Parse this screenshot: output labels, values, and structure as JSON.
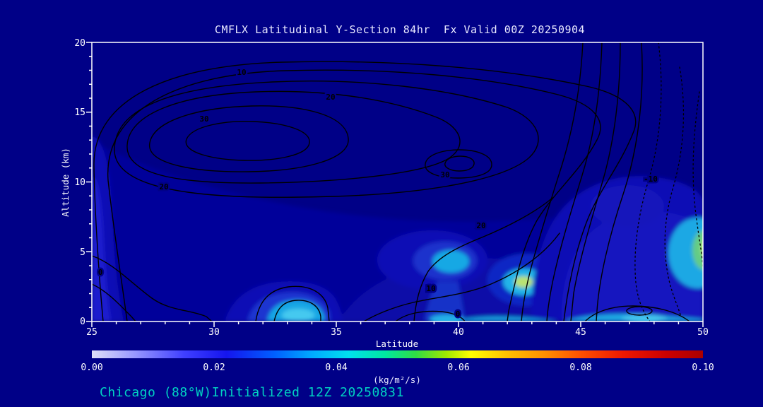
{
  "colors": {
    "background": "#000087",
    "frame": "#ffffff",
    "title_text": "#e8e8ff",
    "axis_text": "#ffffff",
    "footer_text": "#00d2c2",
    "contour_line": "#000000"
  },
  "chart_data": {
    "type": "heatmap",
    "variant": "latitude-height filled-contour cross-section with overlaid line contours",
    "title": "CMFLX Latitudinal Y-Section 84hr  Fx Valid 00Z 20250904",
    "xlabel": "Latitude",
    "ylabel": "Altitude (km)",
    "xlim": [
      25,
      50
    ],
    "ylim": [
      0,
      20
    ],
    "x_ticks": [
      "25",
      "30",
      "35",
      "40",
      "45",
      "50"
    ],
    "y_ticks": [
      "0",
      "5",
      "10",
      "15",
      "20"
    ],
    "grid": false,
    "legend_position": "none",
    "contours": {
      "interval": 5,
      "labeled_levels": [
        0,
        10,
        20,
        30,
        -10
      ],
      "negative_line_style": "dotted",
      "primary_max": {
        "lat": 31,
        "alt_km": 12.5,
        "value": 30
      },
      "secondary_max": {
        "lat": 39.8,
        "alt_km": 11.3,
        "value": 30
      },
      "labels": [
        {
          "text": "10",
          "lat": 31.1,
          "alt_km": 17.7
        },
        {
          "text": "20",
          "lat": 34.8,
          "alt_km": 15.9
        },
        {
          "text": "30",
          "lat": 29.6,
          "alt_km": 14.3
        },
        {
          "text": "20",
          "lat": 28.0,
          "alt_km": 9.5
        },
        {
          "text": "30",
          "lat": 39.5,
          "alt_km": 10.3
        },
        {
          "text": "20",
          "lat": 40.9,
          "alt_km": 6.7
        },
        {
          "text": "10",
          "lat": 38.9,
          "alt_km": 2.2
        },
        {
          "text": "0",
          "lat": 25.3,
          "alt_km": 3.3
        },
        {
          "text": "0",
          "lat": 40.0,
          "alt_km": 0.4
        },
        {
          "text": "-10",
          "lat": 47.9,
          "alt_km": 10.0
        }
      ]
    },
    "shaded_field": {
      "units": "kg/m²/s",
      "features": [
        {
          "lat": 25.5,
          "alt_km_range": [
            0,
            13
          ],
          "value": 0.01,
          "desc": "light-blue band along left edge"
        },
        {
          "lat": 33.8,
          "alt_km_range": [
            0,
            3
          ],
          "value": 0.035,
          "desc": "cyan surface plume"
        },
        {
          "lat": 39.3,
          "alt_km_range": [
            2.5,
            6.5
          ],
          "value": 0.035,
          "desc": "cyan mid-level patch"
        },
        {
          "lat": 40.0,
          "alt_km_range": [
            0,
            1
          ],
          "value": 0.04,
          "desc": "cyan near surface"
        },
        {
          "lat": 42.8,
          "alt_km_range": [
            1.5,
            3.5
          ],
          "value": 0.055,
          "desc": "bright yellow-green spot in cyan patch"
        },
        {
          "lat": 47.0,
          "alt_km_range": [
            0,
            9.5
          ],
          "value": 0.02,
          "desc": "broad light-blue region right side"
        },
        {
          "lat": 49.8,
          "alt_km_range": [
            3.5,
            6.5
          ],
          "value": 0.05,
          "desc": "bright cyan-green maximum at right edge"
        },
        {
          "lat": 47.5,
          "alt_km_range": [
            0,
            0.8
          ],
          "value": 0.04,
          "desc": "cyan strip along surface at right"
        }
      ]
    },
    "colorbar": {
      "label": "(kg/m²/s)",
      "range": [
        0.0,
        0.1
      ],
      "ticks": [
        "0.00",
        "0.02",
        "0.04",
        "0.06",
        "0.08",
        "0.10"
      ],
      "stops": [
        {
          "pos": 0.0,
          "color": "#e0e0f8"
        },
        {
          "pos": 0.07,
          "color": "#9898ff"
        },
        {
          "pos": 0.15,
          "color": "#4040ff"
        },
        {
          "pos": 0.22,
          "color": "#1515ee"
        },
        {
          "pos": 0.3,
          "color": "#0060ff"
        },
        {
          "pos": 0.36,
          "color": "#00aaff"
        },
        {
          "pos": 0.42,
          "color": "#00e0ee"
        },
        {
          "pos": 0.48,
          "color": "#00e8a0"
        },
        {
          "pos": 0.53,
          "color": "#30dd44"
        },
        {
          "pos": 0.58,
          "color": "#a0e800"
        },
        {
          "pos": 0.62,
          "color": "#ffff00"
        },
        {
          "pos": 0.68,
          "color": "#ffc000"
        },
        {
          "pos": 0.74,
          "color": "#ff9000"
        },
        {
          "pos": 0.8,
          "color": "#ff5000"
        },
        {
          "pos": 0.87,
          "color": "#ee1800"
        },
        {
          "pos": 0.94,
          "color": "#cc0000"
        },
        {
          "pos": 1.0,
          "color": "#aa0000"
        }
      ]
    }
  },
  "footer": {
    "text": "Chicago (88°W)Initialized 12Z 20250831"
  }
}
